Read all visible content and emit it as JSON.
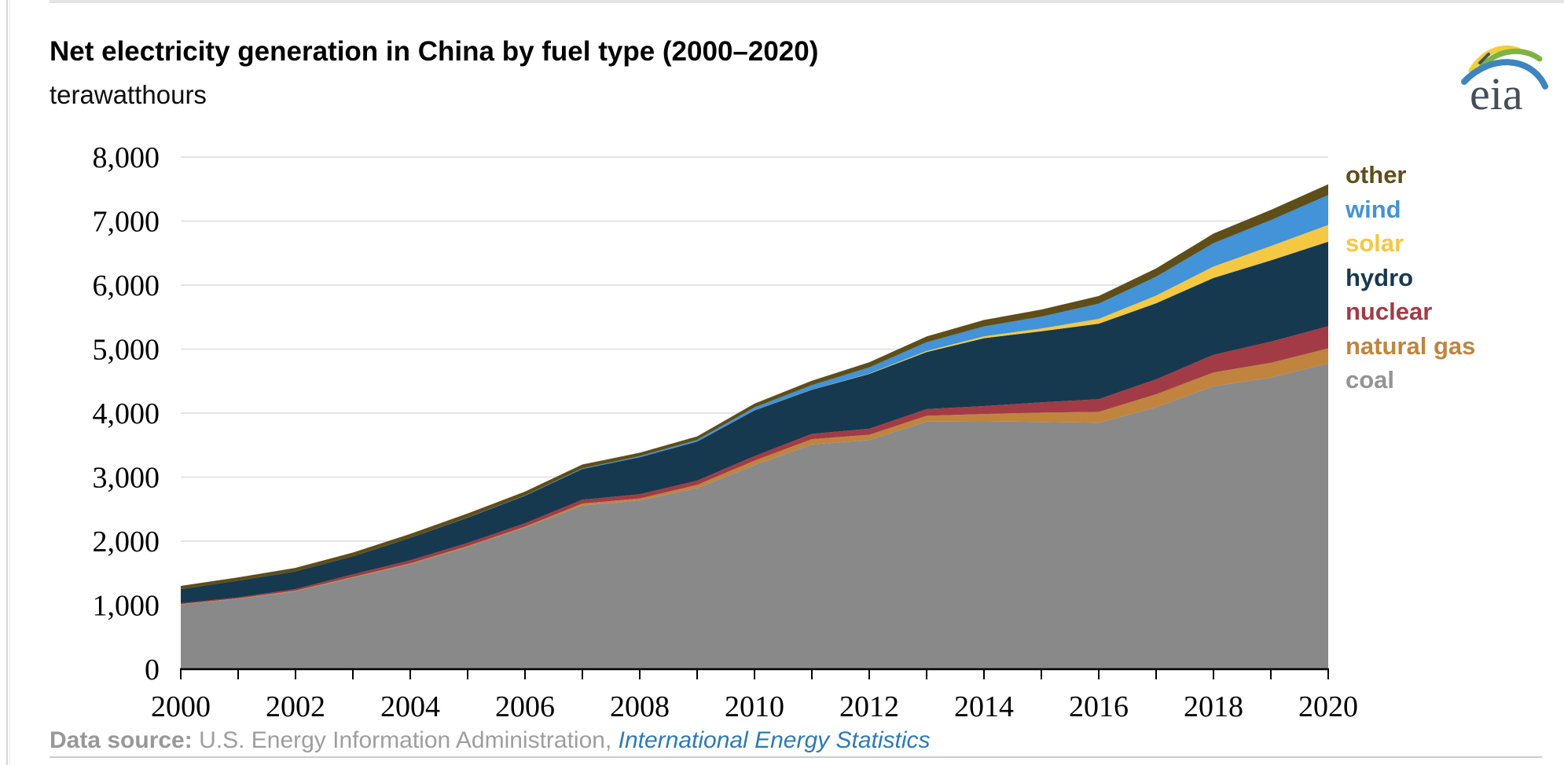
{
  "header": {
    "title": "Net electricity generation in China by fuel type (2000–2020)",
    "subtitle": "terawatthours"
  },
  "logo": {
    "text": "eia"
  },
  "legend": [
    {
      "label": "other",
      "color": "#5f4e19"
    },
    {
      "label": "wind",
      "color": "#4293d7"
    },
    {
      "label": "solar",
      "color": "#f5c843"
    },
    {
      "label": "hydro",
      "color": "#17394f"
    },
    {
      "label": "nuclear",
      "color": "#a23b45"
    },
    {
      "label": "natural gas",
      "color": "#c0843e"
    },
    {
      "label": "coal",
      "color": "#949494"
    }
  ],
  "footer": {
    "prefix_bold": "Data source:",
    "source_text": " U.S. Energy Information Administration, ",
    "link_text": "International Energy Statistics",
    "link_color": "#2e79b5"
  },
  "chart_data": {
    "type": "area",
    "stacked": true,
    "title": "Net electricity generation in China by fuel type (2000–2020)",
    "ylabel": "terawatthours",
    "x": [
      2000,
      2001,
      2002,
      2003,
      2004,
      2005,
      2006,
      2007,
      2008,
      2009,
      2010,
      2011,
      2012,
      2013,
      2014,
      2015,
      2016,
      2017,
      2018,
      2019,
      2020
    ],
    "series": [
      {
        "name": "coal",
        "color": "#898989",
        "values": [
          1009,
          1098,
          1219,
          1431,
          1642,
          1911,
          2213,
          2557,
          2637,
          2828,
          3188,
          3510,
          3578,
          3868,
          3871,
          3862,
          3850,
          4091,
          4420,
          4554,
          4775
        ]
      },
      {
        "name": "natural gas",
        "color": "#c0843e",
        "values": [
          6,
          7,
          8,
          9,
          11,
          12,
          14,
          31,
          31,
          51,
          70,
          84,
          85,
          90,
          115,
          145,
          170,
          203,
          215,
          232,
          237
        ]
      },
      {
        "name": "nuclear",
        "color": "#a23b45",
        "values": [
          16,
          17,
          25,
          42,
          48,
          50,
          52,
          59,
          65,
          66,
          71,
          82,
          93,
          105,
          124,
          161,
          198,
          233,
          277,
          330,
          345
        ]
      },
      {
        "name": "hydro",
        "color": "#17394f",
        "values": [
          220,
          261,
          275,
          281,
          350,
          395,
          431,
          481,
          579,
          610,
          714,
          688,
          856,
          892,
          1060,
          1110,
          1180,
          1190,
          1200,
          1270,
          1322
        ]
      },
      {
        "name": "solar",
        "color": "#f5c843",
        "values": [
          0,
          0,
          0,
          0,
          0,
          0,
          0,
          0,
          0,
          0,
          1,
          3,
          6,
          15,
          29,
          45,
          75,
          118,
          177,
          224,
          261
        ]
      },
      {
        "name": "wind",
        "color": "#4293d7",
        "values": [
          1,
          1,
          1,
          1,
          2,
          2,
          4,
          9,
          15,
          27,
          45,
          70,
          96,
          138,
          156,
          185,
          237,
          295,
          366,
          406,
          466
        ]
      },
      {
        "name": "other",
        "color": "#5f4e19",
        "values": [
          48,
          50,
          55,
          58,
          60,
          62,
          60,
          60,
          55,
          55,
          60,
          70,
          80,
          90,
          100,
          110,
          120,
          130,
          150,
          160,
          170
        ]
      }
    ],
    "ylim": [
      0,
      8000
    ],
    "yticks": [
      0,
      1000,
      2000,
      3000,
      4000,
      5000,
      6000,
      7000,
      8000
    ],
    "ytick_labels": [
      "0",
      "1,000",
      "2,000",
      "3,000",
      "4,000",
      "5,000",
      "6,000",
      "7,000",
      "8,000"
    ],
    "xticks": [
      2000,
      2002,
      2004,
      2006,
      2008,
      2010,
      2012,
      2014,
      2016,
      2018,
      2020
    ],
    "xtick_labels": [
      "2000",
      "2002",
      "2004",
      "2006",
      "2008",
      "2010",
      "2012",
      "2014",
      "2016",
      "2018",
      "2020"
    ],
    "grid": true,
    "grid_color": "#e4e4e4",
    "axis_color": "#000000",
    "legend_position": "right"
  }
}
